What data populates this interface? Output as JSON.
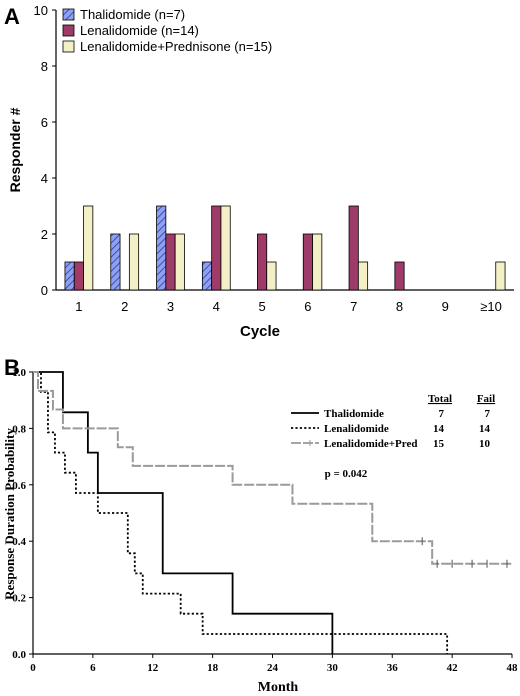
{
  "chart_data": [
    {
      "panel": "A",
      "type": "bar",
      "title": "",
      "xlabel": "Cycle",
      "ylabel": "Responder #",
      "ylim": [
        0,
        10
      ],
      "yticks": [
        0,
        2,
        4,
        6,
        8,
        10
      ],
      "categories": [
        "1",
        "2",
        "3",
        "4",
        "5",
        "6",
        "7",
        "8",
        "9",
        "≥10"
      ],
      "legend_position": "top-left",
      "series": [
        {
          "name": "Thalidomide (n=7)",
          "color": "#8fa0f0",
          "pattern": "diagonal-hatch",
          "values": [
            1,
            2,
            3,
            1,
            0,
            0,
            0,
            0,
            0,
            0
          ]
        },
        {
          "name": "Lenalidomide (n=14)",
          "color": "#9e3b68",
          "pattern": "solid",
          "values": [
            1,
            0,
            2,
            3,
            2,
            2,
            3,
            1,
            0,
            0
          ]
        },
        {
          "name": "Lenalidomide+Prednisone (n=15)",
          "color": "#f3f0c6",
          "pattern": "solid",
          "values": [
            3,
            2,
            2,
            3,
            1,
            2,
            1,
            0,
            0,
            1
          ]
        }
      ]
    },
    {
      "panel": "B",
      "type": "line",
      "title": "",
      "xlabel": "Month",
      "ylabel": "Response Duration Probability",
      "xlim": [
        0,
        48
      ],
      "ylim": [
        0,
        1.0
      ],
      "xticks": [
        0,
        6,
        12,
        18,
        24,
        30,
        36,
        42,
        48
      ],
      "yticks": [
        "0.0",
        "0.2",
        "0.4",
        "0.6",
        "0.8",
        "1.0"
      ],
      "legend_position": "top-right",
      "legend_headers": [
        "Total",
        "Fail"
      ],
      "p_value": "p = 0.042",
      "series": [
        {
          "name": "Thalidomide",
          "total": "7",
          "fail": "7",
          "color": "#000000",
          "style": "solid",
          "x": [
            0,
            1,
            3,
            5.5,
            6.5,
            12.5,
            13,
            20,
            30
          ],
          "y": [
            1.0,
            1.0,
            0.857,
            0.714,
            0.571,
            0.571,
            0.286,
            0.143,
            0.0
          ],
          "censor_x": [],
          "censor_y": []
        },
        {
          "name": "Lenalidomide",
          "total": "14",
          "fail": "14",
          "color": "#000000",
          "style": "dotted",
          "x": [
            0,
            0.8,
            1.5,
            2.2,
            3.2,
            4.3,
            6.5,
            9.5,
            10.2,
            11,
            14.8,
            17,
            41.5
          ],
          "y": [
            1.0,
            0.929,
            0.786,
            0.714,
            0.643,
            0.571,
            0.5,
            0.357,
            0.286,
            0.214,
            0.143,
            0.071,
            0.0
          ],
          "censor_x": [],
          "censor_y": []
        },
        {
          "name": "Lenalidomide+Pred",
          "total": "15",
          "fail": "10",
          "color": "#9a9a9a",
          "style": "solid",
          "x": [
            0,
            0.5,
            2,
            3,
            8.5,
            10,
            20,
            26,
            34,
            40,
            48
          ],
          "y": [
            1.0,
            0.933,
            0.867,
            0.8,
            0.733,
            0.667,
            0.6,
            0.533,
            0.4,
            0.32,
            0.32
          ],
          "censor_x": [
            39,
            40.5,
            42,
            44,
            45.5,
            47.5
          ],
          "censor_y": [
            0.4,
            0.32,
            0.32,
            0.32,
            0.32,
            0.32
          ]
        }
      ]
    }
  ]
}
